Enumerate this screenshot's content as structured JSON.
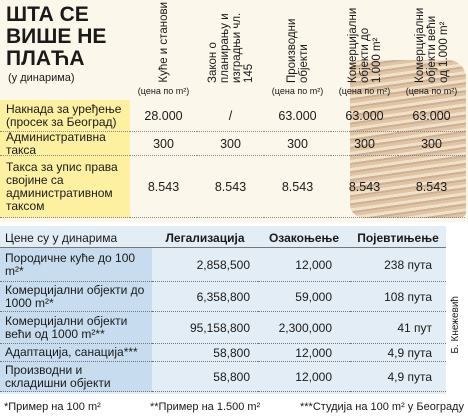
{
  "title": "ШТА СЕ ВИШЕ НЕ ПЛАЋА",
  "subtitle": "(у динарима)",
  "fees_table": {
    "columns": [
      {
        "label": "Куће и станови",
        "unit": "(цена по m²)"
      },
      {
        "label": "Закон о планирању и изградњи чл. 145"
      },
      {
        "label": "Производни објекти",
        "unit": "(цена по m²)"
      },
      {
        "label": "Комерцијални објекти до 1.000 m²",
        "unit": "(цена по m²)"
      },
      {
        "label": "Комерцијални објекти већи од 1.000 m²",
        "unit": "(цена по m²)"
      }
    ],
    "rows": [
      {
        "label": "Накнада за уређење (просек за Београд)",
        "values": [
          "28.000",
          "/",
          "63.000",
          "63.000",
          "63.000"
        ]
      },
      {
        "label": "Административна такса",
        "values": [
          "300",
          "300",
          "300",
          "300",
          "300"
        ]
      },
      {
        "label": "Такса за упис права својине са административном таксом",
        "values": [
          "8.543",
          "8.543",
          "8.543",
          "8.543",
          "8.543"
        ]
      }
    ]
  },
  "price_table": {
    "header": [
      "Цене су у динарима",
      "Легализација",
      "Озакоњење",
      "Појевтињење"
    ],
    "rows": [
      [
        "Породичне куће до 100 m²*",
        "2,858,500",
        "12,000",
        "238 пута"
      ],
      [
        "Комерцијални објекти до 1000 m²*",
        "6,358,800",
        "59,000",
        "108 пута"
      ],
      [
        "Комерцијални објекти већи од 1000 m²**",
        "95,158,800",
        "2,300,000",
        "41 пут"
      ],
      [
        "Адаптација, санација***",
        "58,800",
        "12,000",
        "4,9 пута"
      ],
      [
        "Производни и складишни објекти",
        "58,800",
        "12,000",
        "4,9 пута"
      ]
    ]
  },
  "footnotes": [
    "*Пример на 100 m²",
    "**Пример на 1.500 m²",
    "***Студија на 100 m² у Београду"
  ],
  "credit": "Б. Кнежевић"
}
